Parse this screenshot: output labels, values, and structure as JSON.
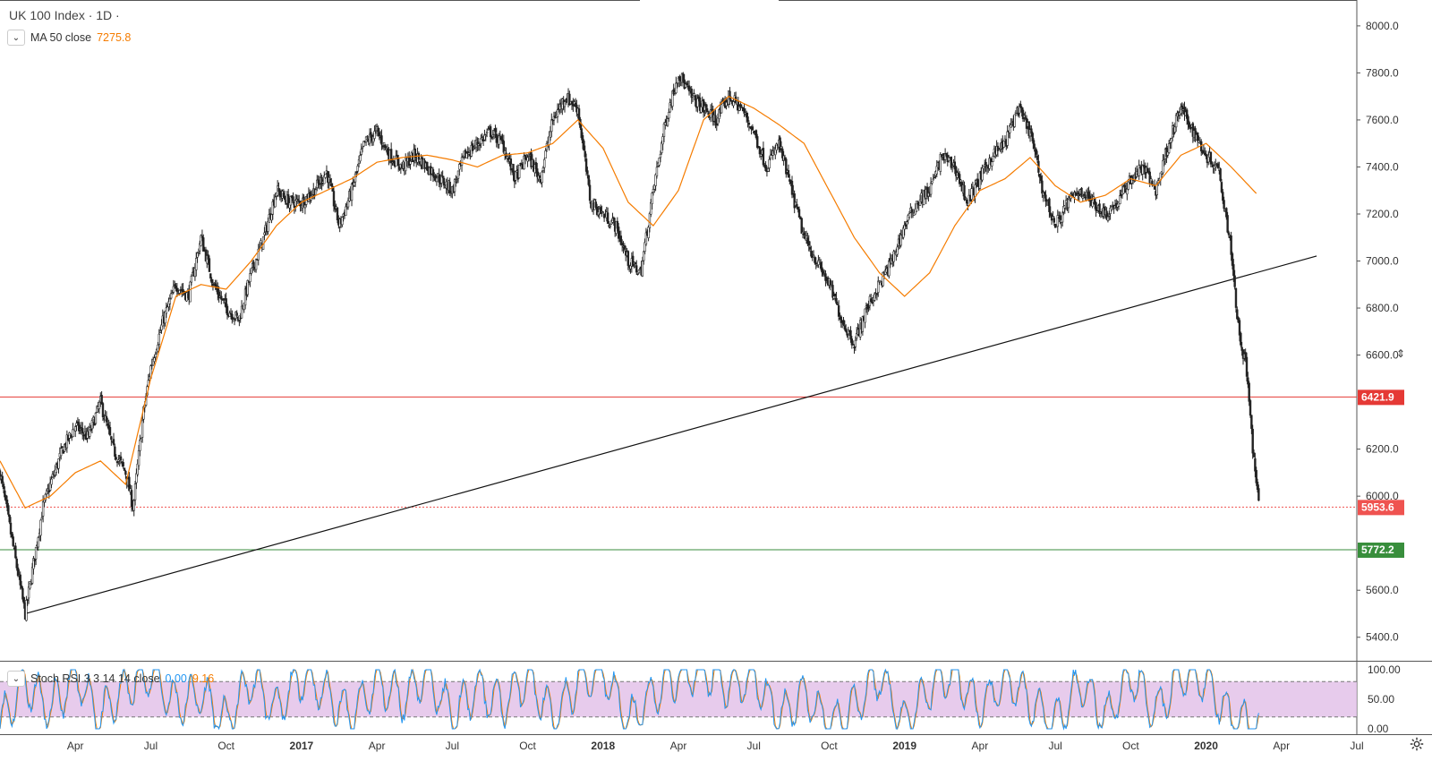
{
  "header": {
    "title": "UK 100 Index · 1D ·",
    "ma_label": "MA 50 close",
    "ma_value": "7275.8"
  },
  "oscillator": {
    "label": "Stoch RSI 3 3 14 14 close",
    "k_value": "0.00",
    "d_value": "9.16",
    "axis_ticks": [
      "100.00",
      "50.00",
      "0.00"
    ],
    "upper_band": 80,
    "lower_band": 20
  },
  "price_axis": {
    "ticks": [
      "8000.0",
      "7800.0",
      "7600.0",
      "7400.0",
      "7200.0",
      "7000.0",
      "6800.0",
      "6600.0",
      "6200.0",
      "6000.0",
      "5600.0",
      "5400.0"
    ],
    "ylim": [
      5300,
      8110
    ]
  },
  "time_axis": {
    "labels": [
      "Apr",
      "Jul",
      "Oct",
      "2017",
      "Apr",
      "Jul",
      "Oct",
      "2018",
      "Apr",
      "Jul",
      "Oct",
      "2019",
      "Apr",
      "Jul",
      "Oct",
      "2020",
      "Apr",
      "Jul"
    ]
  },
  "levels": [
    {
      "value": 6421.9,
      "label": "6421.9",
      "color": "#e53935",
      "style": "solid"
    },
    {
      "value": 5953.6,
      "label": "5953.6",
      "color": "#ef5350",
      "style": "dotted"
    },
    {
      "value": 5772.2,
      "label": "5772.2",
      "color": "#388e3c",
      "style": "solid"
    }
  ],
  "colors": {
    "candle": "#222222",
    "ma": "#f57c00",
    "trendline": "#111111",
    "stoch_k": "#2196f3",
    "stoch_d": "#f57c00",
    "stoch_fill": "#e1bee7"
  },
  "chart_data": {
    "type": "line",
    "title": "UK 100 Index · 1D",
    "x_unit": "months since Jan 2016",
    "series": [
      {
        "name": "UK 100 Index",
        "x": [
          0,
          1,
          1.7,
          2,
          2.5,
          3,
          3.5,
          4,
          4.5,
          5,
          5.3,
          5.7,
          6,
          6.5,
          7,
          7.5,
          8,
          8.5,
          9,
          9.5,
          10,
          10.5,
          11,
          11.5,
          12,
          12.5,
          13,
          13.5,
          14,
          14.5,
          15,
          15.5,
          16,
          16.5,
          17,
          17.5,
          18,
          18.5,
          19,
          19.5,
          20,
          20.5,
          21,
          21.5,
          22,
          22.5,
          23,
          23.5,
          24,
          24.5,
          25,
          25.5,
          26,
          26.5,
          27,
          27.5,
          28,
          28.5,
          29,
          29.5,
          30,
          30.5,
          31,
          31.5,
          32,
          32.5,
          33,
          33.5,
          34,
          34.5,
          35,
          35.5,
          36,
          36.5,
          37,
          37.5,
          38,
          38.5,
          39,
          39.5,
          40,
          40.5,
          41,
          41.5,
          42,
          42.5,
          43,
          43.5,
          44,
          44.5,
          45,
          45.5,
          46,
          46.5,
          47,
          47.5,
          48,
          48.5,
          49,
          49.3,
          49.6,
          49.9,
          50.1
        ],
        "y": [
          6100,
          5500,
          5950,
          6050,
          6200,
          6300,
          6250,
          6400,
          6200,
          6100,
          5950,
          6350,
          6550,
          6750,
          6900,
          6850,
          7100,
          6900,
          6800,
          6750,
          6950,
          7100,
          7300,
          7250,
          7250,
          7300,
          7380,
          7150,
          7300,
          7500,
          7550,
          7450,
          7400,
          7450,
          7400,
          7350,
          7300,
          7450,
          7500,
          7550,
          7500,
          7350,
          7450,
          7350,
          7600,
          7700,
          7650,
          7250,
          7200,
          7150,
          7000,
          6950,
          7300,
          7600,
          7800,
          7700,
          7650,
          7600,
          7700,
          7650,
          7550,
          7400,
          7500,
          7300,
          7100,
          7000,
          6900,
          6750,
          6650,
          6800,
          6900,
          7000,
          7150,
          7250,
          7300,
          7450,
          7400,
          7250,
          7350,
          7450,
          7500,
          7650,
          7550,
          7300,
          7150,
          7250,
          7300,
          7250,
          7200,
          7250,
          7350,
          7400,
          7300,
          7500,
          7650,
          7550,
          7450,
          7400,
          7050,
          6700,
          6550,
          6150,
          5953.6
        ]
      },
      {
        "name": "MA 50 close",
        "x": [
          0,
          1,
          2,
          3,
          4,
          5,
          6,
          7,
          8,
          9,
          10,
          11,
          12,
          13,
          14,
          15,
          16,
          17,
          18,
          19,
          20,
          21,
          22,
          23,
          24,
          25,
          26,
          27,
          28,
          29,
          30,
          31,
          32,
          33,
          34,
          35,
          36,
          37,
          38,
          39,
          40,
          41,
          42,
          43,
          44,
          45,
          46,
          47,
          48,
          49,
          50.1
        ],
        "y": [
          6150,
          5950,
          6000,
          6100,
          6150,
          6050,
          6500,
          6850,
          6900,
          6880,
          7000,
          7150,
          7250,
          7300,
          7350,
          7420,
          7440,
          7450,
          7430,
          7400,
          7450,
          7460,
          7500,
          7600,
          7480,
          7250,
          7150,
          7300,
          7600,
          7700,
          7650,
          7580,
          7500,
          7300,
          7100,
          6950,
          6850,
          6950,
          7150,
          7300,
          7350,
          7440,
          7320,
          7250,
          7280,
          7350,
          7320,
          7450,
          7500,
          7400,
          7275.8
        ]
      },
      {
        "name": "Stoch RSI",
        "x": [
          0,
          1,
          2,
          3,
          4,
          5,
          6,
          7,
          8,
          9,
          10,
          11,
          12,
          13,
          14,
          15,
          16,
          17,
          18,
          19,
          20,
          21,
          22,
          23,
          24,
          25,
          26,
          27,
          28,
          29,
          30,
          31,
          32,
          33,
          34,
          35,
          36,
          37,
          38,
          39,
          40,
          41,
          42,
          43,
          44,
          45,
          46,
          47,
          48,
          49,
          50.1
        ],
        "y": [
          10,
          80,
          30,
          90,
          20,
          70,
          95,
          40,
          60,
          10,
          85,
          30,
          90,
          60,
          20,
          80,
          50,
          95,
          20,
          70,
          40,
          90,
          15,
          80,
          100,
          10,
          60,
          90,
          100,
          70,
          85,
          20,
          60,
          5,
          40,
          90,
          10,
          70,
          95,
          30,
          85,
          45,
          10,
          80,
          20,
          90,
          30,
          95,
          80,
          20,
          0
        ]
      }
    ],
    "xlim": [
      0,
      54
    ],
    "ylim": [
      5300,
      8110
    ],
    "ylabel": "",
    "xlabel": ""
  }
}
